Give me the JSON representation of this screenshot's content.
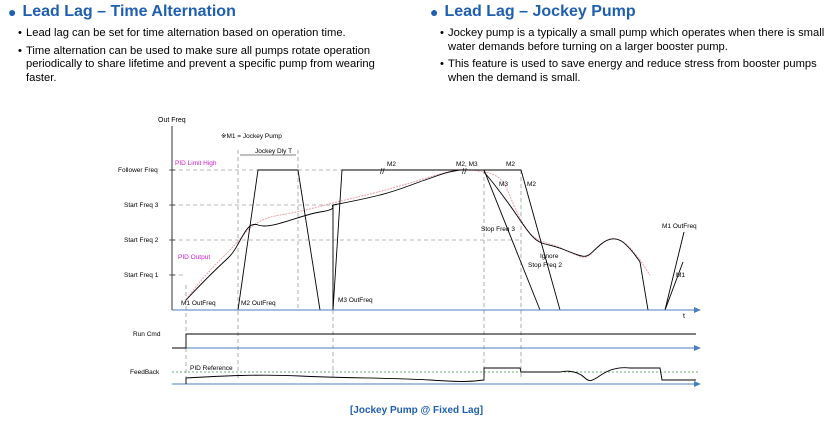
{
  "left_section": {
    "title": "Lead Lag – Time Alternation",
    "bullets": [
      "Lead lag can be set for time alternation based on operation time.",
      "Time alternation can be used to make sure all pumps rotate operation periodically to share lifetime and prevent a specific pump from wearing faster."
    ]
  },
  "right_section": {
    "title": "Lead Lag – Jockey Pump",
    "bullets": [
      "Jockey pump is a typically a small pump which operates when there is small water demands before turning on a larger booster pump.",
      "This feature is used to save energy and reduce stress from booster pumps when the demand is small."
    ]
  },
  "diagram": {
    "y_axis_label": "Out Freq",
    "x_axis_label": "t",
    "levels": [
      "Follower Freq",
      "Start Freq 3",
      "Start Freq 2",
      "Start Freq 1"
    ],
    "note": "※M1 = Jockey Pump",
    "jockey_delay": "Jockey Dly T",
    "pid_limit_high": "PID Limit High",
    "pid_output": "PID Output",
    "pump_labels": {
      "m1_outfreq_low": "M1 OutFreq",
      "m2_outfreq": "M2 OutFreq",
      "m3_outfreq": "M3 OutFreq",
      "m2_top": "M2",
      "m2_m3_top": "M2, M3",
      "m2_right": "M2",
      "m3_ramp": "M3",
      "m2_ramp": "M2",
      "stop_freq_3": "Stop Freq 3",
      "ignore_stop_1": "Ignore",
      "ignore_stop_2": "Stop Freq 2",
      "m1_outfreq_right": "M1 OutFreq",
      "m1_right": "M1"
    },
    "run_cmd_label": "Run Cmd",
    "feedback_label": "FeedBack",
    "pid_reference": "PID Reference"
  },
  "caption": "[Jockey Pump @ Fixed Lag]",
  "colors": {
    "heading": "#1f5fb0",
    "axis_arrow": "#4a7fc0",
    "pid_text": "#d020d0",
    "pid_curve": "#e8a0a8",
    "reference_line": "#2e9a4a"
  }
}
